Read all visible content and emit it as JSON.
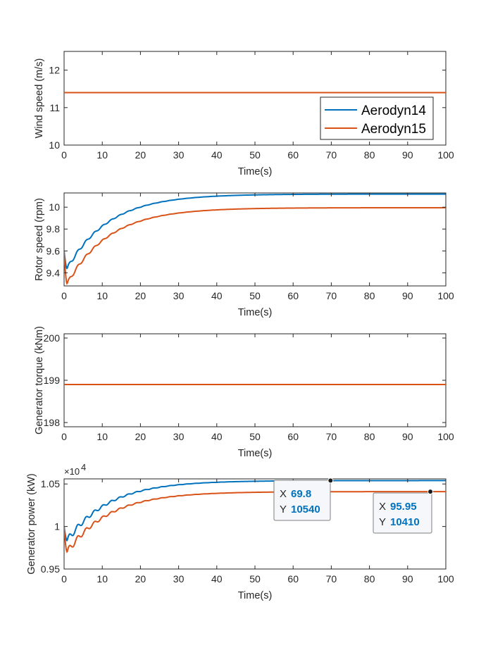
{
  "colors": {
    "Aerodyn14": "#0072BD",
    "Aerodyn15": "#D95319",
    "axis": "#262626"
  },
  "legend": {
    "entries": [
      "Aerodyn14",
      "Aerodyn15"
    ],
    "placement": "inside-bottom-right of first plot"
  },
  "chart_data": [
    {
      "type": "line",
      "ylabel": "Wind speed (m/s)",
      "xlabel": "Time(s)",
      "xlim": [
        0,
        100
      ],
      "ylim": [
        10,
        12.5
      ],
      "xticks": [
        0,
        10,
        20,
        30,
        40,
        50,
        60,
        70,
        80,
        90,
        100
      ],
      "yticks": [
        10,
        11,
        12
      ],
      "ytick_labels": [
        "10",
        "11",
        "12"
      ],
      "series": [
        {
          "name": "Aerodyn14",
          "model": "const",
          "value": 11.4
        },
        {
          "name": "Aerodyn15",
          "model": "const",
          "value": 11.4
        }
      ]
    },
    {
      "type": "line",
      "ylabel": "Rotor speed (rpm)",
      "xlabel": "Time(s)",
      "xlim": [
        0,
        100
      ],
      "ylim": [
        9.28,
        10.13
      ],
      "xticks": [
        0,
        10,
        20,
        30,
        40,
        50,
        60,
        70,
        80,
        90,
        100
      ],
      "yticks": [
        9.4,
        9.6,
        9.8,
        10
      ],
      "ytick_labels": [
        "9.4",
        "9.6",
        "9.8",
        "10"
      ],
      "series": [
        {
          "name": "Aerodyn14",
          "model": "settle",
          "start": 9.6,
          "trough": 9.44,
          "trough_t": 0.8,
          "final": 10.12,
          "tau": 11,
          "osc": 0.018
        },
        {
          "name": "Aerodyn15",
          "model": "settle",
          "start": 9.6,
          "trough": 9.3,
          "trough_t": 0.8,
          "final": 9.995,
          "tau": 11,
          "osc": 0.018
        }
      ]
    },
    {
      "type": "line",
      "ylabel": "Generator torque (kNm)",
      "xlabel": "Time(s)",
      "xlim": [
        0,
        100
      ],
      "ylim": [
        197.9,
        200.1
      ],
      "xticks": [
        0,
        10,
        20,
        30,
        40,
        50,
        60,
        70,
        80,
        90,
        100
      ],
      "yticks": [
        198,
        199,
        200
      ],
      "ytick_labels": [
        "198",
        "199",
        "200"
      ],
      "series": [
        {
          "name": "Aerodyn14",
          "model": "const",
          "value": 198.9
        },
        {
          "name": "Aerodyn15",
          "model": "const",
          "value": 198.9
        }
      ]
    },
    {
      "type": "line",
      "ylabel": "Generator power (kW)",
      "xlabel": "Time(s)",
      "xlim": [
        0,
        100
      ],
      "ylim": [
        9500,
        10560
      ],
      "xticks": [
        0,
        10,
        20,
        30,
        40,
        50,
        60,
        70,
        80,
        90,
        100
      ],
      "yticks": [
        9500,
        10000,
        10500
      ],
      "ytick_labels": [
        "0.95",
        "1",
        "1.05"
      ],
      "exponent_label": "×10",
      "exponent_power": "4",
      "series": [
        {
          "name": "Aerodyn14",
          "model": "settle",
          "start": 10000,
          "trough": 9835,
          "trough_t": 0.8,
          "final": 10540,
          "tau": 11,
          "osc": 40
        },
        {
          "name": "Aerodyn15",
          "model": "settle",
          "start": 10000,
          "trough": 9700,
          "trough_t": 0.8,
          "final": 10410,
          "tau": 11,
          "osc": 40
        }
      ],
      "datatips": [
        {
          "x_label": "X",
          "x_value": "69.8",
          "y_label": "Y",
          "y_value": "10540",
          "x": 69.8,
          "y": 10540,
          "series": "Aerodyn14"
        },
        {
          "x_label": "X",
          "x_value": "95.95",
          "y_label": "Y",
          "y_value": "10410",
          "x": 95.95,
          "y": 10410,
          "series": "Aerodyn15"
        }
      ]
    }
  ]
}
